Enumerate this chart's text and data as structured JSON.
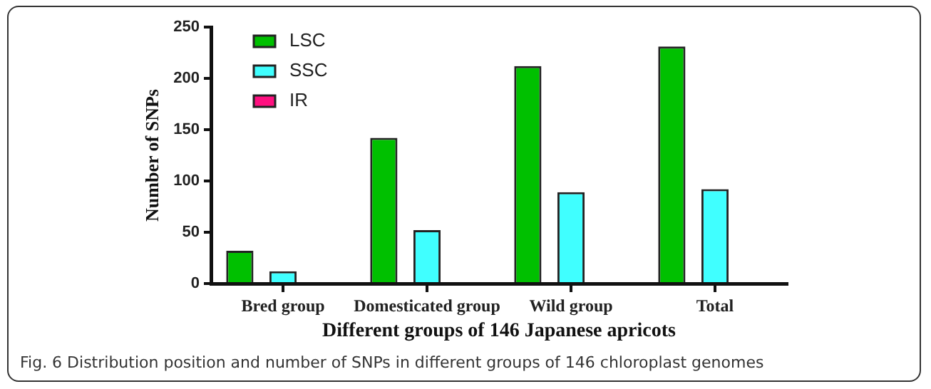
{
  "chart_data": {
    "type": "bar",
    "xlabel": "Different groups of 146 Japanese apricots",
    "ylabel": "Number of SNPs",
    "categories": [
      "Bred group",
      "Domesticated group",
      "Wild group",
      "Total"
    ],
    "series": [
      {
        "name": "LSC",
        "color": "#00c000",
        "values": [
          32,
          142,
          212,
          231
        ]
      },
      {
        "name": "SSC",
        "color": "#40ffff",
        "values": [
          12,
          52,
          89,
          92
        ]
      },
      {
        "name": "IR",
        "color": "#ff1080",
        "values": [
          0,
          0,
          0,
          0
        ]
      }
    ],
    "ylim": [
      0,
      250
    ],
    "yticks": [
      0,
      50,
      100,
      150,
      200,
      250
    ],
    "grid": false,
    "legend": "top left",
    "annotations": [
      "Fig. 6 Distribution position and number of SNPs in different groups of 146 chloroplast genomes"
    ]
  }
}
